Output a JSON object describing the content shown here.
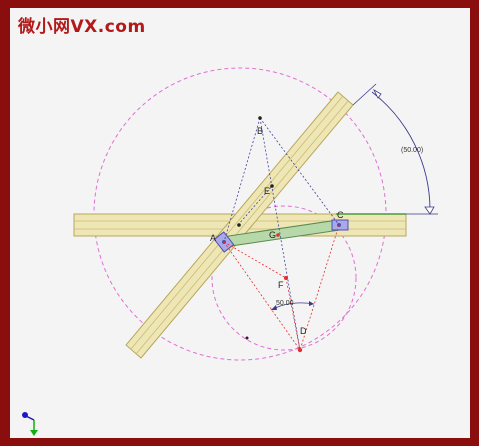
{
  "watermark": "微小网VX.com",
  "points": {
    "A": "A",
    "B": "B",
    "C": "C",
    "D": "D",
    "E": "E",
    "F": "F",
    "G": "G"
  },
  "dimensions": {
    "angle": "(50.00)",
    "length": "50.00"
  },
  "colors": {
    "background": "#f4f4f4",
    "frame": "#8b0e0e",
    "bar_fill": "#eee6b4",
    "bar_stroke": "#b8a85c",
    "link_fill": "#b7d8a8",
    "link_stroke": "#5a8a50",
    "circle_stroke": "#e070d0",
    "construction_red": "#e03030",
    "construction_blue": "#4040a0",
    "joint": "#8a8ae0"
  }
}
